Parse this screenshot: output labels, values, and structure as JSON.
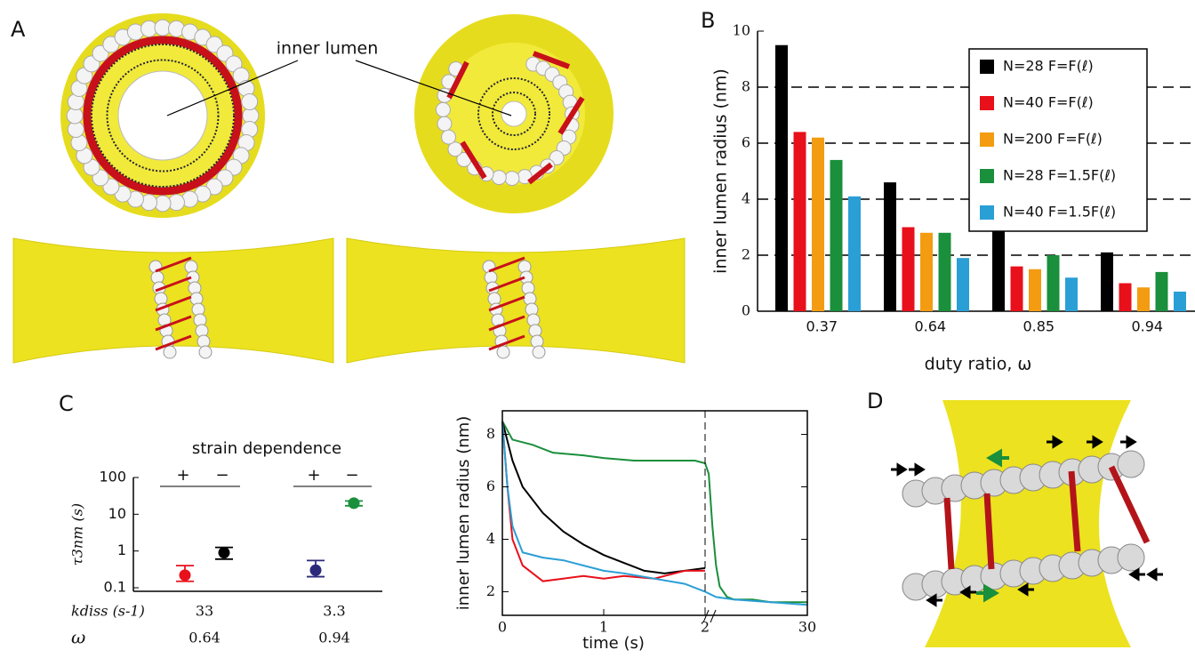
{
  "panel_labels": [
    "A",
    "B",
    "C",
    "D"
  ],
  "panel_a": {
    "annotation": "inner lumen"
  },
  "chart_data": [
    {
      "type": "bar",
      "ylabel": "inner lumen radius (nm)",
      "xlabel": "duty ratio, ω",
      "categories": [
        "0.37",
        "0.64",
        "0.85",
        "0.94"
      ],
      "series": [
        {
          "name": "N=28  F=F(ℓ)",
          "color": "#000000",
          "values": [
            9.5,
            4.6,
            2.9,
            2.1
          ]
        },
        {
          "name": "N=40  F=F(ℓ)",
          "color": "#e8101a",
          "values": [
            6.4,
            3.0,
            1.6,
            1.0
          ]
        },
        {
          "name": "N=200  F=F(ℓ)",
          "color": "#f39c12",
          "values": [
            6.2,
            2.8,
            1.5,
            0.85
          ]
        },
        {
          "name": "N=28  F=1.5F(ℓ)",
          "color": "#1a8f3c",
          "values": [
            5.4,
            2.8,
            2.0,
            1.4
          ]
        },
        {
          "name": "N=40  F=1.5F(ℓ)",
          "color": "#2a9fd6",
          "values": [
            4.1,
            1.9,
            1.2,
            0.7
          ]
        }
      ],
      "ylim": [
        0,
        10
      ],
      "yticks": [
        0,
        2,
        4,
        6,
        8,
        10
      ],
      "grid": true,
      "legend": "top-right"
    },
    {
      "type": "errorpoint",
      "title": "strain dependence",
      "ylabel": "τ3nm (s)",
      "log_y": true,
      "values": [
        0.22,
        0.9,
        0.3,
        20
      ],
      "error_low": [
        0.15,
        0.6,
        0.2,
        17
      ],
      "error_high": [
        0.4,
        1.25,
        0.55,
        23
      ],
      "colors": [
        "#e8101a",
        "#000000",
        "#2b2a7a",
        "#1a8f3c"
      ],
      "strain_labels": [
        "+",
        "−",
        "+",
        "−"
      ],
      "k_diss_label": "kdiss (s-1)",
      "k_diss": [
        33,
        3.3
      ],
      "omega_label": "ω",
      "omega": [
        0.64,
        0.94
      ],
      "ylim": [
        0.08,
        100
      ],
      "yticks": [
        0.1,
        1,
        10,
        100
      ]
    },
    {
      "type": "line",
      "xlabel": "time (s)",
      "ylabel": "inner lumen radius (nm)",
      "series": [
        {
          "color": "#1a8f3c",
          "x": [
            0,
            0.1,
            0.3,
            0.5,
            0.8,
            1,
            1.3,
            1.6,
            1.9,
            2,
            3,
            4,
            5,
            6,
            8,
            10,
            15,
            20,
            30
          ],
          "values": [
            8.5,
            7.8,
            7.6,
            7.3,
            7.2,
            7.1,
            7.0,
            7.0,
            7.0,
            6.9,
            6.5,
            4.5,
            3.0,
            2.2,
            1.8,
            1.7,
            1.7,
            1.6,
            1.6
          ]
        },
        {
          "color": "#000000",
          "x": [
            0,
            0.1,
            0.2,
            0.4,
            0.6,
            0.8,
            1,
            1.2,
            1.4,
            1.6,
            1.8,
            2
          ],
          "values": [
            8.5,
            7.0,
            6.0,
            5.0,
            4.3,
            3.8,
            3.4,
            3.1,
            2.8,
            2.7,
            2.8,
            2.9
          ]
        },
        {
          "color": "#e8101a",
          "x": [
            0,
            0.05,
            0.1,
            0.2,
            0.4,
            0.6,
            0.8,
            1,
            1.2,
            1.5,
            1.8,
            2
          ],
          "values": [
            8.5,
            6.0,
            4.0,
            3.0,
            2.4,
            2.5,
            2.6,
            2.5,
            2.6,
            2.5,
            2.8,
            2.8
          ]
        },
        {
          "color": "#2a9fd6",
          "x": [
            0,
            0.05,
            0.1,
            0.2,
            0.4,
            0.6,
            0.8,
            1,
            1.2,
            1.5,
            1.8,
            2,
            5,
            10,
            20,
            30
          ],
          "values": [
            8.5,
            6.0,
            4.5,
            3.5,
            3.3,
            3.2,
            3.0,
            2.8,
            2.7,
            2.5,
            2.3,
            2.0,
            1.8,
            1.7,
            1.6,
            1.5
          ]
        }
      ],
      "xlim": [
        0,
        30
      ],
      "x_break": 2,
      "xticks": [
        0,
        1,
        2,
        30
      ],
      "ylim": [
        1.1,
        8.9
      ],
      "yticks": [
        2,
        4,
        6,
        8
      ]
    }
  ]
}
